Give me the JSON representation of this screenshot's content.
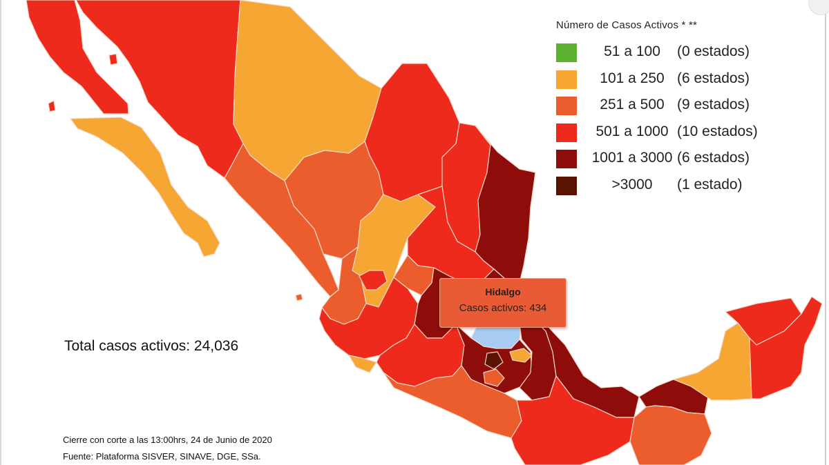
{
  "legend": {
    "title": "Número de Casos Activos * **",
    "items": [
      {
        "range": "51 a 100",
        "count": "(0 estados)",
        "color": "#5bb030"
      },
      {
        "range": "101 a 250",
        "count": "(6 estados)",
        "color": "#f5a633"
      },
      {
        "range": "251 a 500",
        "count": "(9 estados)",
        "color": "#eb5d2d"
      },
      {
        "range": "501 a 1000",
        "count": "(10 estados)",
        "color": "#ee2a1c"
      },
      {
        "range": "1001 a 3000",
        "count": "(6 estados)",
        "color": "#8e0c09"
      },
      {
        "range": ">3000",
        "count": "(1 estado)",
        "color": "#5a1203"
      }
    ]
  },
  "total": "Total casos activos: 24,036",
  "tooltip": {
    "title": "Hidalgo",
    "body": "Casos activos: 434"
  },
  "footer": {
    "line1": "Cierre con corte a las 13:00hrs, 24 de Junio de 2020",
    "line2": "Fuente: Plataforma SISVER, SINAVE, DGE, SSa."
  },
  "colors": {
    "selected_state": "#a9cdf2",
    "border": "#f7d9c8"
  },
  "icons": [
    "close-button-icon"
  ]
}
